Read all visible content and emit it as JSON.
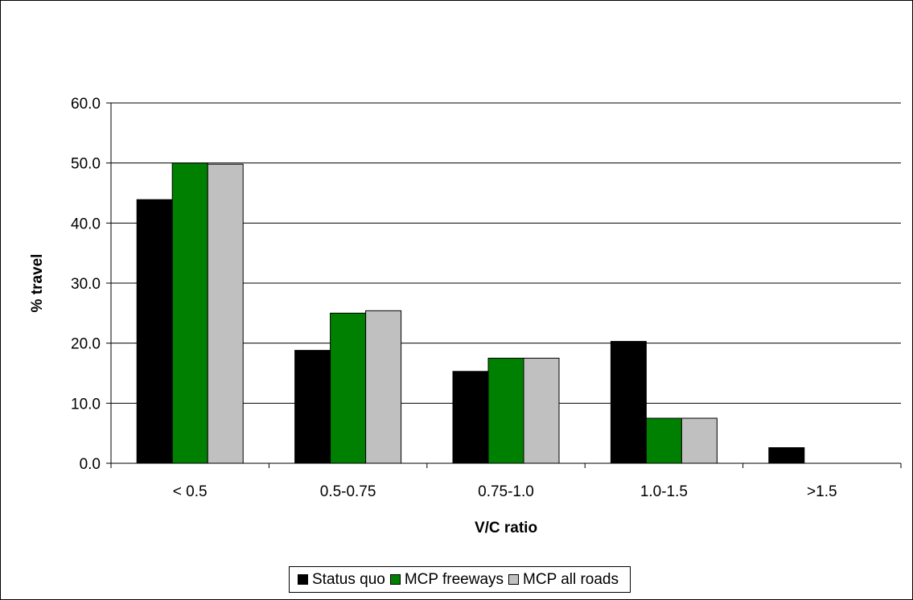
{
  "chart_data": {
    "type": "bar",
    "title": "",
    "xlabel": "V/C ratio",
    "ylabel": "% travel",
    "ylim": [
      0,
      60
    ],
    "yticks": [
      "0.0",
      "10.0",
      "20.0",
      "30.0",
      "40.0",
      "50.0",
      "60.0"
    ],
    "grid": true,
    "legend_position": "bottom",
    "categories": [
      "< 0.5",
      "0.5-0.75",
      "0.75-1.0",
      "1.0-1.5",
      ">1.5"
    ],
    "series": [
      {
        "name": "Status quo",
        "color": "#000000",
        "values": [
          43.9,
          18.8,
          15.3,
          20.3,
          2.6
        ]
      },
      {
        "name": "MCP freeways",
        "color": "#008000",
        "values": [
          50.0,
          25.0,
          17.5,
          7.5,
          0.0
        ]
      },
      {
        "name": "MCP all roads",
        "color": "#c0c0c0",
        "values": [
          49.8,
          25.4,
          17.5,
          7.5,
          0.0
        ]
      }
    ]
  }
}
